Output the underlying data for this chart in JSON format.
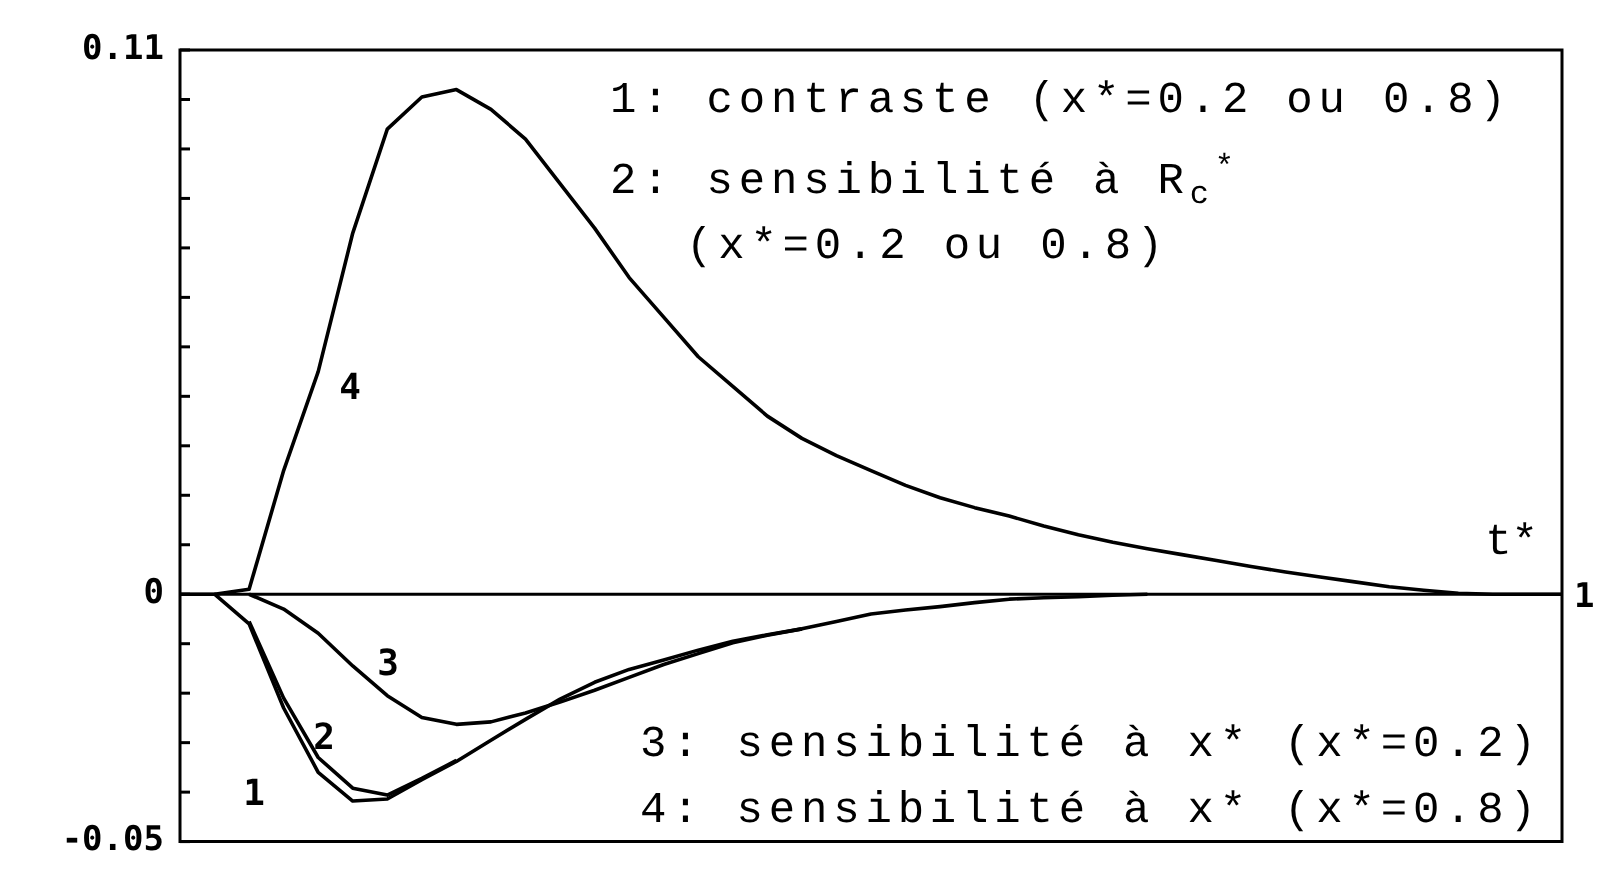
{
  "chart_data": {
    "type": "line",
    "xlabel": "t*",
    "categories": [
      null,
      null,
      null,
      null,
      null,
      null,
      null,
      null,
      null,
      null,
      null,
      null,
      null,
      null,
      null,
      null,
      null,
      null,
      null,
      null,
      null,
      null,
      null,
      null,
      null,
      null,
      null,
      null,
      null,
      null,
      null,
      null,
      null,
      null,
      null,
      null,
      null,
      null,
      null,
      null,
      null
    ],
    "ylim": [
      -0.05,
      0.11
    ],
    "yticks": [
      -0.05,
      {
        "value": -0.04,
        "label": null
      },
      {
        "value": -0.03,
        "label": null
      },
      {
        "value": -0.02,
        "label": null
      },
      {
        "value": -0.01,
        "label": null
      },
      0,
      {
        "value": 0.01,
        "label": null
      },
      {
        "value": 0.02,
        "label": null
      },
      {
        "value": 0.03,
        "label": null
      },
      {
        "value": 0.04,
        "label": null
      },
      {
        "value": 0.05,
        "label": null
      },
      {
        "value": 0.06,
        "label": null
      },
      {
        "value": 0.07,
        "label": null
      },
      {
        "value": 0.08,
        "label": null
      },
      {
        "value": 0.09,
        "label": null
      },
      {
        "value": 0.1,
        "label": null
      },
      0.11
    ],
    "grid": false,
    "ref_lines": [
      {
        "axis": "y",
        "value": 0
      }
    ],
    "legend": false,
    "marker": "none",
    "line_style": "solid",
    "annotations": [
      "1",
      "1: contraste (x*=0.2 ou 0.8)",
      "2: sensibilité à R$_{c}$$^{*}$",
      "(x*=0.2 ou 0.8)",
      "3: sensibilité à x* (x*=0.2)",
      "4: sensibilité à x* (x*=0.8)",
      "1",
      "2",
      "3",
      "4"
    ],
    "series": [
      {
        "color": "#000000",
        "values": [
          0,
          0,
          -0.006,
          -0.023,
          -0.036,
          -0.0418,
          -0.0414,
          -0.0375,
          -0.0338,
          -0.0295,
          -0.0253,
          -0.0212,
          -0.0178,
          -0.0152,
          -0.0133,
          -0.0113,
          -0.0095,
          -0.0082,
          -0.007,
          -0.0055,
          -0.004,
          -0.0032,
          -0.0025,
          -0.0017,
          -0.001,
          -0.0007,
          -0.0005,
          -0.0002,
          0,
          null,
          null,
          null,
          null,
          null,
          null,
          null,
          null,
          null,
          null,
          null,
          null
        ]
      },
      {
        "color": "#000000",
        "values": [
          null,
          null,
          -0.0055,
          -0.021,
          -0.033,
          -0.0392,
          -0.0406,
          -0.0372,
          -0.0336,
          null,
          null,
          null,
          null,
          null,
          null,
          null,
          null,
          null,
          null,
          null,
          null,
          null,
          null,
          null,
          null,
          null,
          null,
          null,
          null,
          null,
          null,
          null,
          null,
          null,
          null,
          null,
          null,
          null,
          null,
          null,
          null
        ]
      },
      {
        "color": "#000000",
        "values": [
          null,
          null,
          0,
          -0.003,
          -0.0079,
          -0.0145,
          -0.0205,
          -0.0249,
          -0.0263,
          -0.0258,
          -0.024,
          -0.0218,
          -0.0194,
          -0.0168,
          -0.0142,
          -0.012,
          -0.0098,
          -0.0083,
          -0.007,
          null,
          null,
          null,
          null,
          null,
          null,
          null,
          null,
          null,
          null,
          null,
          null,
          null,
          null,
          null,
          null,
          null,
          null,
          null,
          null,
          null,
          null
        ]
      },
      {
        "color": "#000000",
        "values": [
          null,
          0,
          0.001,
          0.025,
          0.045,
          0.073,
          0.094,
          0.1005,
          0.102,
          0.098,
          0.092,
          0.083,
          0.074,
          0.064,
          0.056,
          0.048,
          0.042,
          0.036,
          0.0315,
          0.028,
          0.025,
          0.022,
          0.0195,
          0.0175,
          0.0158,
          0.0138,
          0.012,
          0.0105,
          0.0092,
          0.008,
          0.0068,
          0.0056,
          0.0045,
          0.0035,
          0.0025,
          0.0015,
          0.0008,
          0.0002,
          0,
          0,
          0
        ]
      }
    ]
  }
}
